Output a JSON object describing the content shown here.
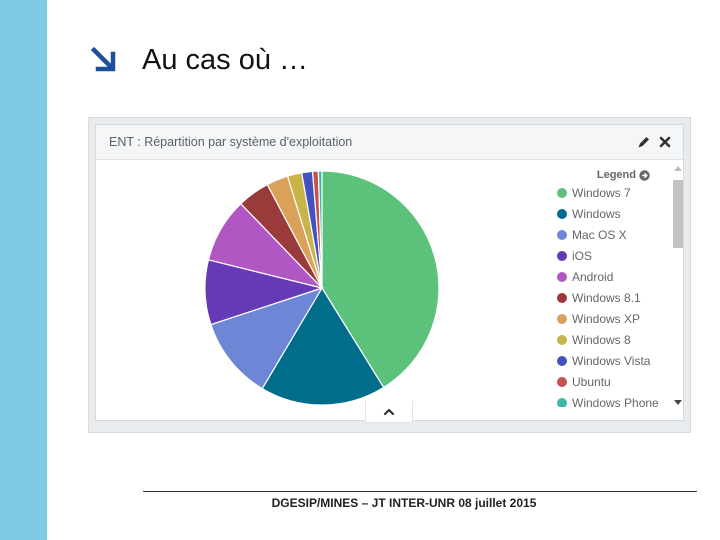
{
  "slide": {
    "title": "Au cas où …",
    "accent_color": "#7ecbe4",
    "arrow_color": "#1f4e9a",
    "arrow_icon": "arrow-down-right-icon"
  },
  "widget": {
    "title": "ENT : Répartition par système d'exploitation",
    "header_icons": [
      "edit-icon",
      "close-icon"
    ],
    "legend_title": "Legend",
    "legend_icon": "arrow-circle-right-icon",
    "collapse_icon": "chevron-up-icon"
  },
  "chart_data": {
    "type": "pie",
    "categories": [
      "Windows 7",
      "Windows",
      "Mac OS X",
      "iOS",
      "Android",
      "Windows 8.1",
      "Windows XP",
      "Windows 8",
      "Windows Vista",
      "Ubuntu",
      "Windows Phone"
    ],
    "values": [
      41.5,
      17.5,
      11.5,
      9.0,
      9.0,
      4.5,
      3.0,
      2.0,
      1.5,
      0.8,
      0.5
    ],
    "colors": [
      "#5cc17a",
      "#006e8a",
      "#6e86d6",
      "#6639b6",
      "#b157c4",
      "#9a3b3b",
      "#d9a15a",
      "#c9b44a",
      "#4452bf",
      "#c9514b",
      "#3fb8a8"
    ],
    "start": "top",
    "direction": "clockwise",
    "legend_visible_count": 11,
    "legend_position": "right"
  },
  "footer": {
    "text": "DGESIP/MINES – JT INTER-UNR 08 juillet 2015"
  }
}
